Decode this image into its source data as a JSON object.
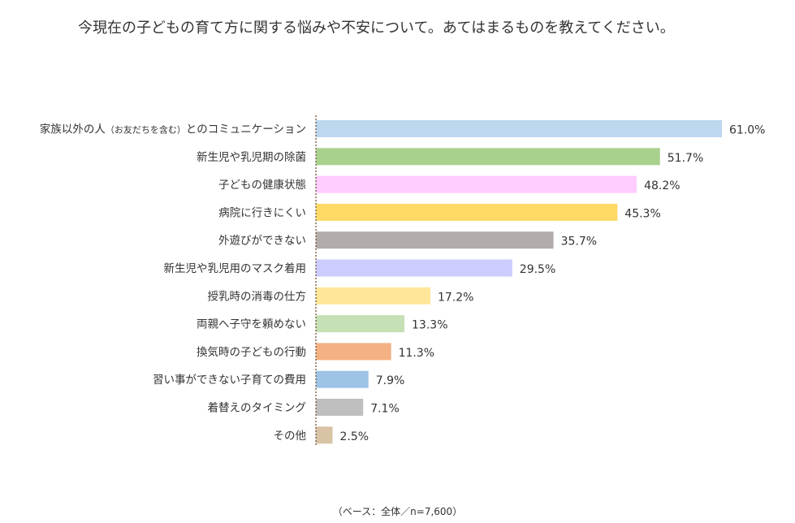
{
  "title": "今現在の子どもの育て方に関する悩みや不安について。あてはまるものを教えてください。",
  "note": "（ベース：全体／n=7,600）",
  "chart_data": {
    "type": "bar",
    "orientation": "horizontal",
    "title": "今現在の子どもの育て方に関する悩みや不安について。あてはまるものを教えてください。",
    "xlabel": "",
    "ylabel": "",
    "xlim": [
      0,
      61
    ],
    "grid": false,
    "legend": "none",
    "categories": [
      "家族以外の人（お友だちを含む）とのコミュニケーション",
      "新生児や乳児期の除菌",
      "子どもの健康状態",
      "病院に行きにくい",
      "外遊びができない",
      "新生児や乳児用のマスク着用",
      "授乳時の消毒の仕方",
      "両親へ子守を頼めない",
      "換気時の子どもの行動",
      "習い事ができない子育ての費用",
      "着替えのタイミング",
      "その他"
    ],
    "values": [
      61.0,
      51.7,
      48.2,
      45.3,
      35.7,
      29.5,
      17.2,
      13.3,
      11.3,
      7.9,
      7.1,
      2.5
    ],
    "value_labels": [
      "61.0%",
      "51.7%",
      "48.2%",
      "45.3%",
      "35.7%",
      "29.5%",
      "17.2%",
      "13.3%",
      "11.3%",
      "7.9%",
      "7.1%",
      "2.5%"
    ],
    "colors": [
      "#bdd7ee",
      "#a9d18e",
      "#ffccff",
      "#ffd966",
      "#b2adab",
      "#ccccff",
      "#ffe699",
      "#c5e0b4",
      "#f4b183",
      "#9dc3e6",
      "#bfbfbf",
      "#d9c3a5"
    ]
  }
}
